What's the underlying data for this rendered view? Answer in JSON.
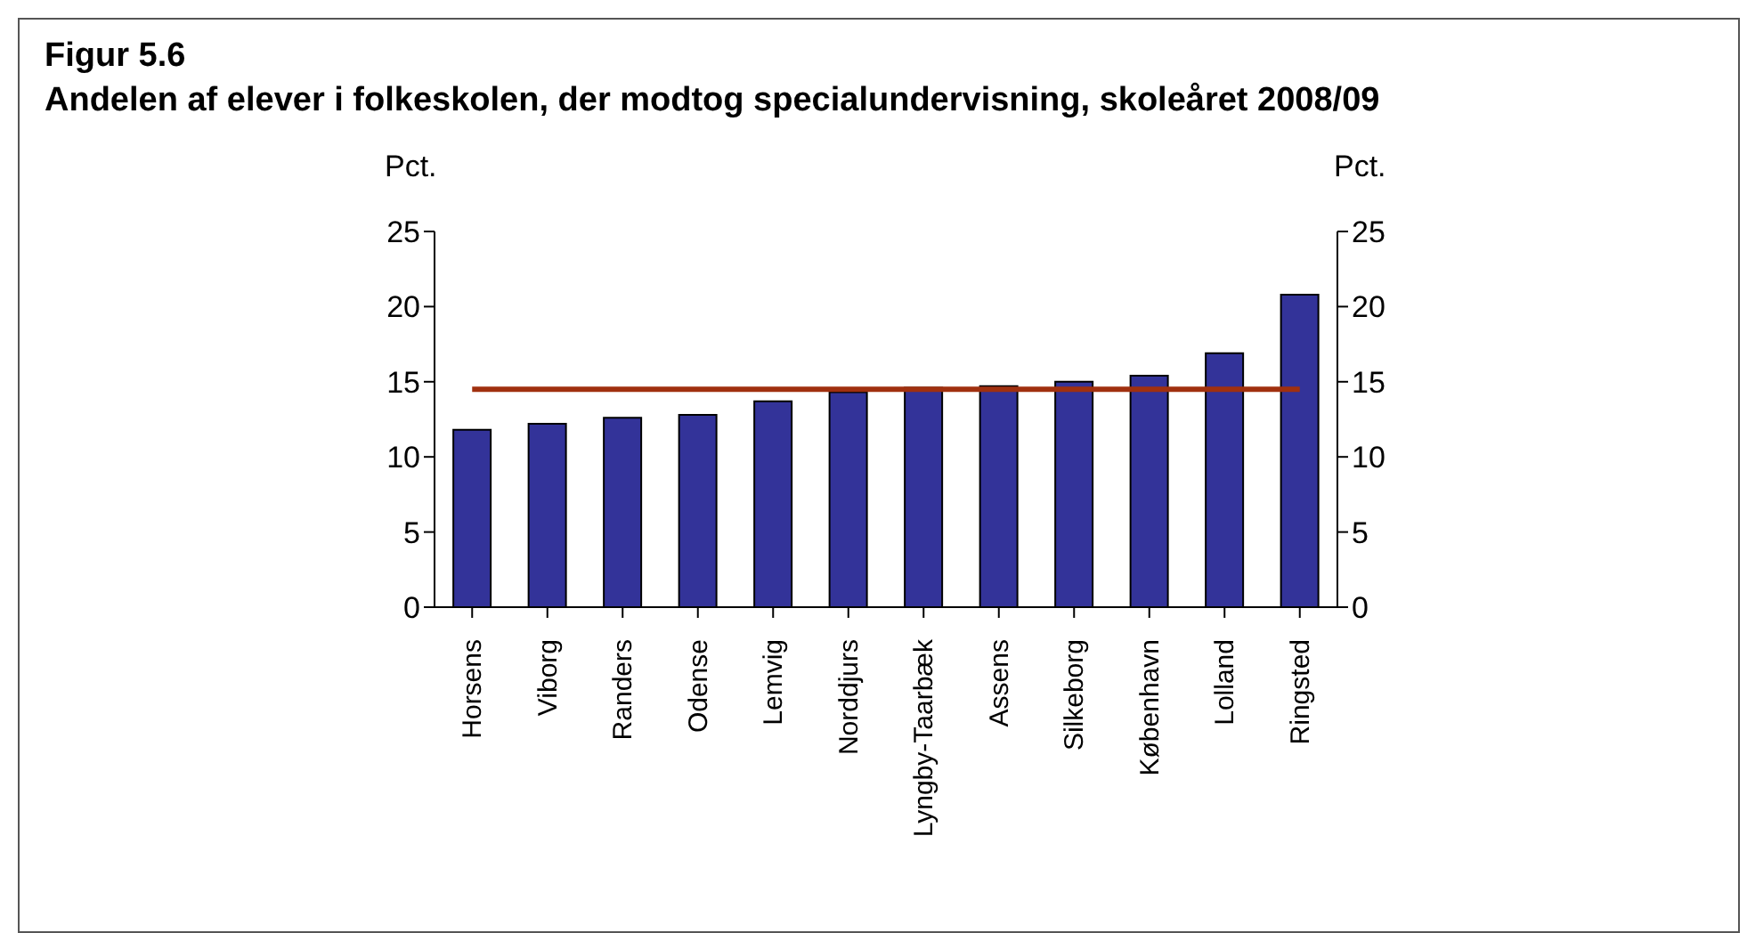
{
  "chart_data": {
    "type": "bar",
    "title": "Figur 5.6",
    "subtitle": "Andelen af elever i folkeskolen, der modtog specialundervisning, skoleåret 2008/09",
    "categories": [
      "Horsens",
      "Viborg",
      "Randers",
      "Odense",
      "Lemvig",
      "Norddjurs",
      "Lyngby-Taarbæk",
      "Assens",
      "Silkeborg",
      "København",
      "Lolland",
      "Ringsted"
    ],
    "series": [
      {
        "color": "#333399",
        "values": [
          11.8,
          12.2,
          12.6,
          12.8,
          13.7,
          14.3,
          14.6,
          14.7,
          15.0,
          15.4,
          16.9,
          20.8
        ]
      },
      {
        "type": "line",
        "color": "#a0300f",
        "values": [
          14.5,
          14.5,
          14.5,
          14.5,
          14.5,
          14.5,
          14.5,
          14.5,
          14.5,
          14.5,
          14.5,
          14.5
        ]
      }
    ],
    "ylabel": "Pct.",
    "y2label": "Pct.",
    "ylim": [
      0,
      25
    ],
    "yticks": [
      0,
      5,
      10,
      15,
      20,
      25
    ],
    "y2lim": [
      0,
      25
    ],
    "y2ticks": [
      0,
      5,
      10,
      15,
      20,
      25
    ]
  }
}
